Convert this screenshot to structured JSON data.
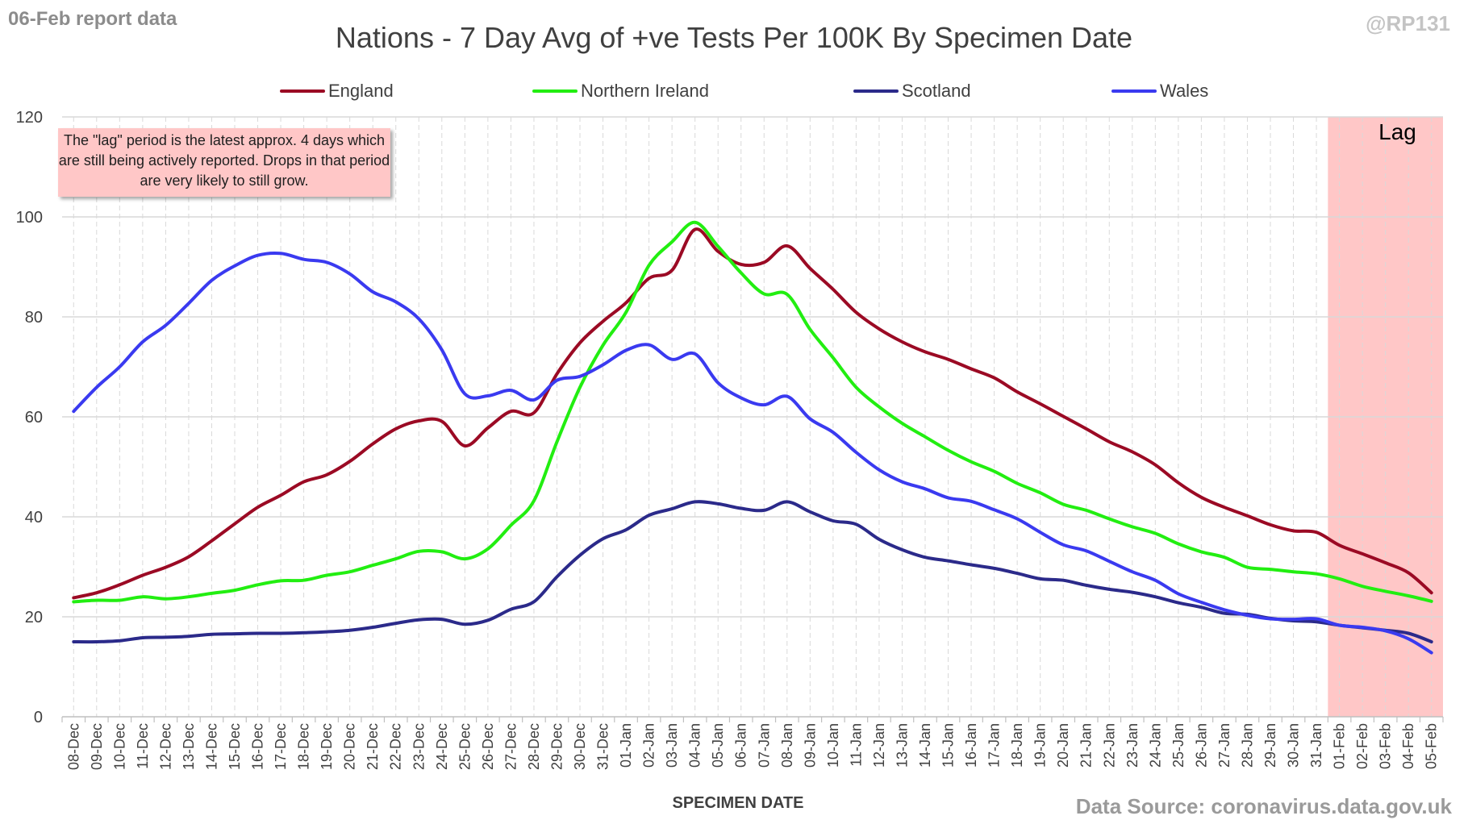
{
  "corner_left": "06-Feb report data",
  "corner_right": "@RP131",
  "source": "Data Source: coronavirus.data.gov.uk",
  "note": "The \"lag\" period is the latest approx. 4 days which are still being actively reported. Drops in that period are very likely to still grow.",
  "lag_label": "Lag",
  "colors": {
    "england": "#9b0a24",
    "northern_ireland": "#22ee11",
    "scotland": "#2b2a8a",
    "wales": "#3a3af0",
    "lag_fill": "#ffc7c7",
    "grid": "#d9d9d9"
  },
  "chart_data": {
    "type": "line",
    "title": "Nations - 7 Day Avg of +ve Tests Per 100K By Specimen Date",
    "xlabel": "SPECIMEN DATE",
    "ylabel": "",
    "ylim": [
      0,
      120
    ],
    "yticks": [
      0,
      20,
      40,
      60,
      80,
      100,
      120
    ],
    "grid": true,
    "legend_position": "top",
    "lag_start": "01-Feb",
    "x": [
      "08-Dec",
      "09-Dec",
      "10-Dec",
      "11-Dec",
      "12-Dec",
      "13-Dec",
      "14-Dec",
      "15-Dec",
      "16-Dec",
      "17-Dec",
      "18-Dec",
      "19-Dec",
      "20-Dec",
      "21-Dec",
      "22-Dec",
      "23-Dec",
      "24-Dec",
      "25-Dec",
      "26-Dec",
      "27-Dec",
      "28-Dec",
      "29-Dec",
      "30-Dec",
      "31-Dec",
      "01-Jan",
      "02-Jan",
      "03-Jan",
      "04-Jan",
      "05-Jan",
      "06-Jan",
      "07-Jan",
      "08-Jan",
      "09-Jan",
      "10-Jan",
      "11-Jan",
      "12-Jan",
      "13-Jan",
      "14-Jan",
      "15-Jan",
      "16-Jan",
      "17-Jan",
      "18-Jan",
      "19-Jan",
      "20-Jan",
      "21-Jan",
      "22-Jan",
      "23-Jan",
      "24-Jan",
      "25-Jan",
      "26-Jan",
      "27-Jan",
      "28-Jan",
      "29-Jan",
      "30-Jan",
      "31-Jan",
      "01-Feb",
      "02-Feb",
      "03-Feb",
      "04-Feb",
      "05-Feb"
    ],
    "series": [
      {
        "name": "England",
        "color": "#9b0a24",
        "values": [
          23.8,
          24.8,
          26.4,
          28.3,
          29.9,
          32.0,
          35.2,
          38.6,
          41.9,
          44.3,
          47.0,
          48.4,
          51.1,
          54.6,
          57.6,
          59.2,
          59.1,
          54.2,
          57.8,
          61.1,
          60.8,
          68.6,
          74.8,
          79.1,
          82.8,
          87.7,
          89.3,
          97.5,
          93.1,
          90.5,
          90.9,
          94.2,
          89.7,
          85.5,
          80.9,
          77.6,
          75.0,
          73.0,
          71.5,
          69.6,
          67.8,
          65.0,
          62.6,
          60.1,
          57.6,
          55.0,
          53.0,
          50.4,
          46.8,
          43.9,
          41.9,
          40.2,
          38.4,
          37.2,
          36.9,
          34.3,
          32.6,
          30.8,
          28.8,
          24.8
        ]
      },
      {
        "name": "Northern Ireland",
        "color": "#22ee11",
        "values": [
          23.0,
          23.3,
          23.3,
          24.0,
          23.6,
          24.0,
          24.7,
          25.3,
          26.4,
          27.2,
          27.3,
          28.3,
          29.0,
          30.3,
          31.6,
          33.1,
          33.0,
          31.6,
          33.6,
          38.3,
          43.2,
          55.0,
          65.9,
          74.3,
          80.9,
          90.3,
          95.0,
          98.9,
          94.1,
          88.8,
          84.6,
          84.5,
          77.5,
          71.8,
          65.9,
          62.0,
          58.7,
          56.0,
          53.3,
          51.0,
          49.1,
          46.7,
          44.8,
          42.5,
          41.3,
          39.6,
          38.0,
          36.7,
          34.6,
          33.0,
          31.9,
          29.9,
          29.5,
          29.0,
          28.6,
          27.6,
          26.1,
          25.1,
          24.2,
          23.1
        ]
      },
      {
        "name": "Scotland",
        "color": "#2b2a8a",
        "values": [
          15.0,
          15.0,
          15.2,
          15.8,
          15.9,
          16.1,
          16.5,
          16.6,
          16.7,
          16.7,
          16.8,
          17.0,
          17.3,
          17.9,
          18.7,
          19.4,
          19.5,
          18.5,
          19.3,
          21.5,
          23.0,
          28.0,
          32.3,
          35.6,
          37.4,
          40.3,
          41.6,
          43.0,
          42.6,
          41.7,
          41.3,
          43.0,
          41.0,
          39.2,
          38.5,
          35.5,
          33.4,
          31.9,
          31.2,
          30.4,
          29.7,
          28.7,
          27.6,
          27.3,
          26.3,
          25.5,
          24.9,
          24.0,
          22.8,
          21.9,
          20.7,
          20.5,
          19.7,
          19.2,
          19.0,
          18.3,
          17.8,
          17.3,
          16.7,
          15.0
        ]
      },
      {
        "name": "Wales",
        "color": "#3a3af0",
        "values": [
          61.1,
          65.9,
          70.0,
          75.0,
          78.3,
          82.7,
          87.3,
          90.2,
          92.3,
          92.7,
          91.5,
          90.9,
          88.6,
          85.0,
          83.0,
          79.6,
          73.4,
          64.6,
          64.2,
          65.3,
          63.4,
          67.3,
          68.1,
          70.4,
          73.3,
          74.4,
          71.5,
          72.6,
          66.8,
          63.8,
          62.4,
          64.1,
          59.6,
          56.9,
          52.9,
          49.4,
          47.0,
          45.6,
          43.8,
          43.1,
          41.4,
          39.6,
          36.9,
          34.4,
          33.2,
          31.1,
          29.0,
          27.3,
          24.6,
          22.9,
          21.4,
          20.3,
          19.6,
          19.5,
          19.6,
          18.3,
          17.9,
          17.2,
          15.6,
          12.8
        ]
      }
    ]
  }
}
